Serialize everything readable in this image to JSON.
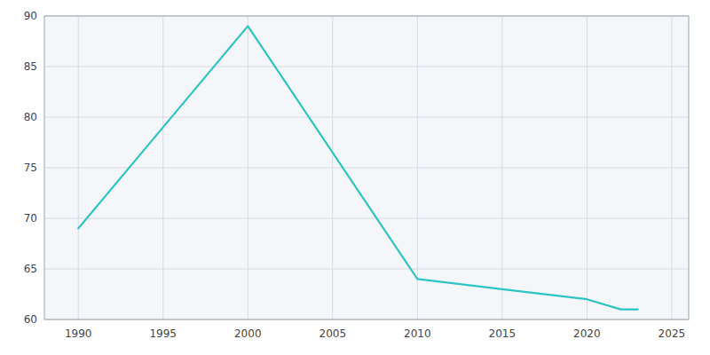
{
  "chart_data": {
    "type": "line",
    "x": [
      1990,
      2000,
      2010,
      2015,
      2020,
      2022,
      2023
    ],
    "values": [
      69,
      89,
      64,
      63,
      62,
      61,
      61
    ],
    "color": "#2EC4C4",
    "xlim": [
      1988,
      2026
    ],
    "ylim": [
      60,
      90
    ],
    "xticks": [
      1990,
      1995,
      2000,
      2005,
      2010,
      2015,
      2020,
      2025
    ],
    "yticks": [
      60,
      65,
      70,
      75,
      80,
      85,
      90
    ],
    "grid": true
  }
}
